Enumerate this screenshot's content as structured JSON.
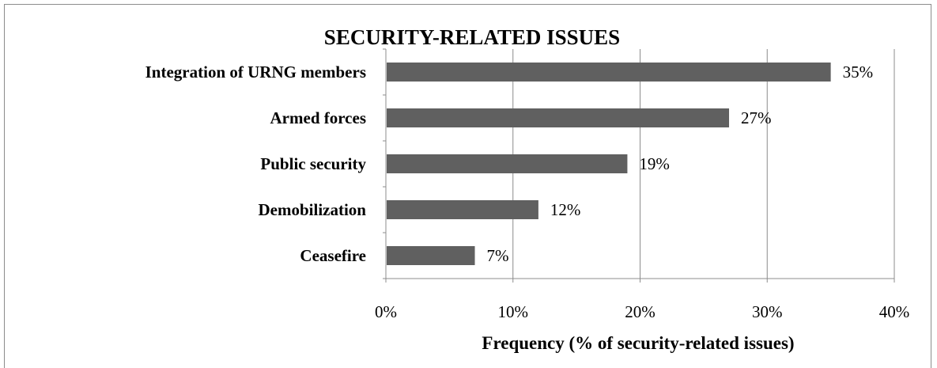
{
  "chart_data": {
    "type": "bar",
    "orientation": "horizontal",
    "title": "SECURITY-RELATED ISSUES",
    "xlabel": "Frequency (% of security-related issues)",
    "ylabel": "",
    "categories": [
      "Integration of URNG members",
      "Armed forces",
      "Public security",
      "Demobilization",
      "Ceasefire"
    ],
    "values": [
      35,
      27,
      19,
      12,
      7
    ],
    "value_labels": [
      "35%",
      "27%",
      "19%",
      "12%",
      "7%"
    ],
    "xlim": [
      0,
      40
    ],
    "x_ticks": [
      0,
      10,
      20,
      30,
      40
    ],
    "x_tick_labels": [
      "0%",
      "10%",
      "20%",
      "30%",
      "40%"
    ],
    "grid": "vertical",
    "legend": "none",
    "bar_color": "#606060",
    "gridline_color": "#8c8c8c"
  }
}
